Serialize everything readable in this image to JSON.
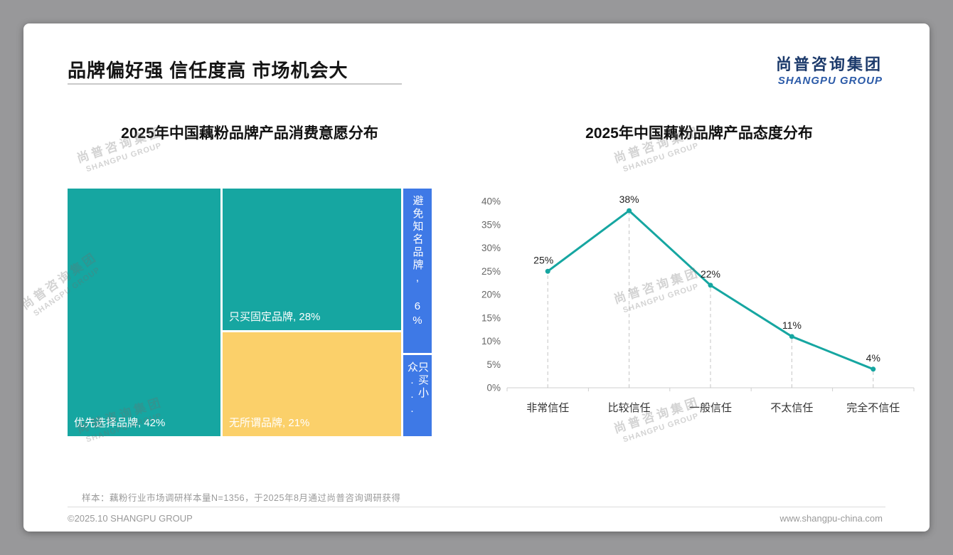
{
  "page": {
    "title": "品牌偏好强 信任度高 市场机会大",
    "logo": {
      "cn": "尚普咨询集团",
      "en": "SHANGPU GROUP"
    },
    "watermark": {
      "cn": "尚普咨询集团",
      "en": "SHANGPU GROUP"
    },
    "footnote": "样本：藕粉行业市场调研样本量N=1356，于2025年8月通过尚普咨询调研获得",
    "footer": {
      "left": "©2025.10 SHANGPU GROUP",
      "right": "www.shangpu-china.com"
    }
  },
  "colors": {
    "teal": "#16A6A1",
    "yellow": "#FBD06A",
    "blue": "#3E79E6",
    "line": "#16A6A1",
    "grid": "#C4C4C4",
    "axis_text": "#666666"
  },
  "chart_data": [
    {
      "type": "treemap",
      "title": "2025年中国藕粉品牌产品消费意愿分布",
      "items": [
        {
          "label": "优先选择品牌",
          "value": 42,
          "display": "优先选择品牌, 42%",
          "color": "teal"
        },
        {
          "label": "只买固定品牌",
          "value": 28,
          "display": "只买固定品牌, 28%",
          "color": "teal"
        },
        {
          "label": "无所谓品牌",
          "value": 21,
          "display": "无所谓品牌, 21%",
          "color": "yellow"
        },
        {
          "label": "避免知名品牌",
          "value": 6,
          "display": "避免知名品牌, 6%",
          "color": "blue"
        },
        {
          "label": "只买小众品牌",
          "value": 3,
          "display": "只买小众...",
          "color": "blue"
        }
      ]
    },
    {
      "type": "line",
      "title": "2025年中国藕粉品牌产品态度分布",
      "categories": [
        "非常信任",
        "比较信任",
        "一般信任",
        "不太信任",
        "完全不信任"
      ],
      "values": [
        25,
        38,
        22,
        11,
        4
      ],
      "point_labels": [
        "25%",
        "38%",
        "22%",
        "11%",
        "4%"
      ],
      "ylim": [
        0,
        40
      ],
      "ytick_step": 5,
      "ytick_suffix": "%",
      "grid": "dashed-vertical",
      "legend": "none"
    }
  ]
}
